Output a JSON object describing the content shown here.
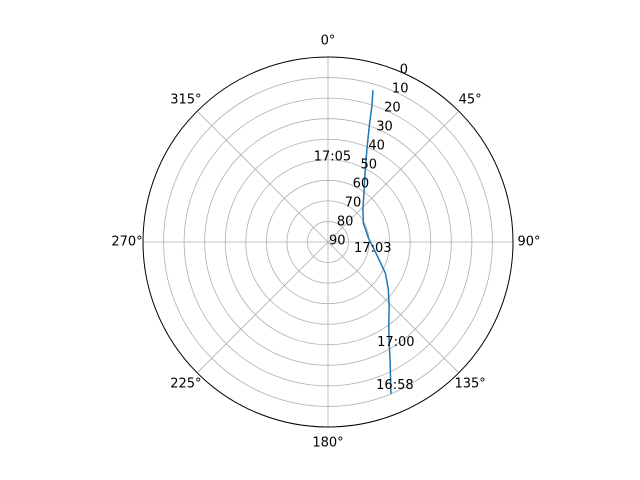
{
  "chart_data": {
    "type": "line",
    "projection": "polar",
    "theta_zero_location": "N",
    "theta_direction": "clockwise",
    "r_axis_inverted": true,
    "rlim": [
      90,
      0
    ],
    "r_ticks": [
      "0",
      "10",
      "20",
      "30",
      "40",
      "50",
      "60",
      "70",
      "80",
      "90"
    ],
    "theta_ticks": [
      {
        "deg": 0,
        "label": "0°"
      },
      {
        "deg": 45,
        "label": "45°"
      },
      {
        "deg": 90,
        "label": "90°"
      },
      {
        "deg": 135,
        "label": "135°"
      },
      {
        "deg": 180,
        "label": "180°"
      },
      {
        "deg": 225,
        "label": "225°"
      },
      {
        "deg": 270,
        "label": "270°"
      },
      {
        "deg": 315,
        "label": "315°"
      }
    ],
    "grid": true,
    "series": [
      {
        "color": "#1f77b4",
        "points": [
          {
            "az": 157.5,
            "el": 10.0
          },
          {
            "az": 155.2,
            "el": 17.5
          },
          {
            "az": 152.3,
            "el": 25.0
          },
          {
            "az": 148.5,
            "el": 33.1
          },
          {
            "az": 143.5,
            "el": 40.3
          },
          {
            "az": 136.2,
            "el": 47.0
          },
          {
            "az": 127.7,
            "el": 53.0
          },
          {
            "az": 118.5,
            "el": 58.2
          },
          {
            "az": 104.6,
            "el": 65.5
          },
          {
            "az": 84.7,
            "el": 70.2
          },
          {
            "az": 62.0,
            "el": 70.5
          },
          {
            "az": 47.0,
            "el": 66.8
          },
          {
            "az": 36.3,
            "el": 60.5
          },
          {
            "az": 28.0,
            "el": 51.6
          },
          {
            "az": 22.6,
            "el": 40.6
          },
          {
            "az": 19.6,
            "el": 30.1
          },
          {
            "az": 17.8,
            "el": 20.0
          },
          {
            "az": 16.5,
            "el": 13.0
          }
        ]
      }
    ],
    "annotations": [
      {
        "text": "16:58",
        "az": 155.0,
        "el": 13.0
      },
      {
        "text": "17:00",
        "az": 146.0,
        "el": 31.0
      },
      {
        "text": "17:03",
        "az": 98.0,
        "el": 68.0
      },
      {
        "text": "17:05",
        "az": 3.0,
        "el": 48.5
      }
    ]
  }
}
